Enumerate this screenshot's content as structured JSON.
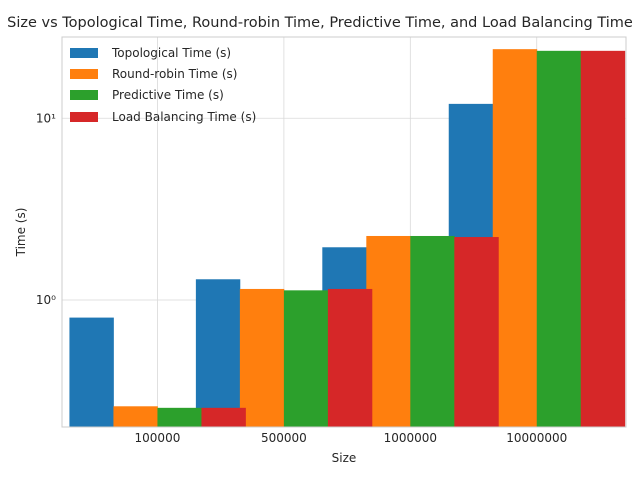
{
  "chart_data": {
    "type": "bar",
    "title": "Size vs Topological Time, Round-robin Time, Predictive Time, and Load Balancing Time",
    "xlabel": "Size",
    "ylabel": "Time (s)",
    "yscale": "log",
    "ylim": [
      0.2,
      28
    ],
    "yticks": [
      {
        "value": 1,
        "label": "10⁰"
      },
      {
        "value": 10,
        "label": "10¹"
      }
    ],
    "grid": true,
    "legend_position": "top-left",
    "categories": [
      "100000",
      "500000",
      "1000000",
      "10000000"
    ],
    "series": [
      {
        "name": "Topological Time (s)",
        "color": "#1f77b4",
        "values": [
          0.8,
          1.3,
          1.95,
          12.0
        ]
      },
      {
        "name": "Round-robin Time (s)",
        "color": "#ff7f0e",
        "values": [
          0.26,
          1.15,
          2.25,
          24.0
        ]
      },
      {
        "name": "Predictive Time (s)",
        "color": "#2ca02c",
        "values": [
          0.255,
          1.13,
          2.25,
          23.5
        ]
      },
      {
        "name": "Load Balancing Time (s)",
        "color": "#d62728",
        "values": [
          0.255,
          1.15,
          2.22,
          23.5
        ]
      }
    ]
  }
}
